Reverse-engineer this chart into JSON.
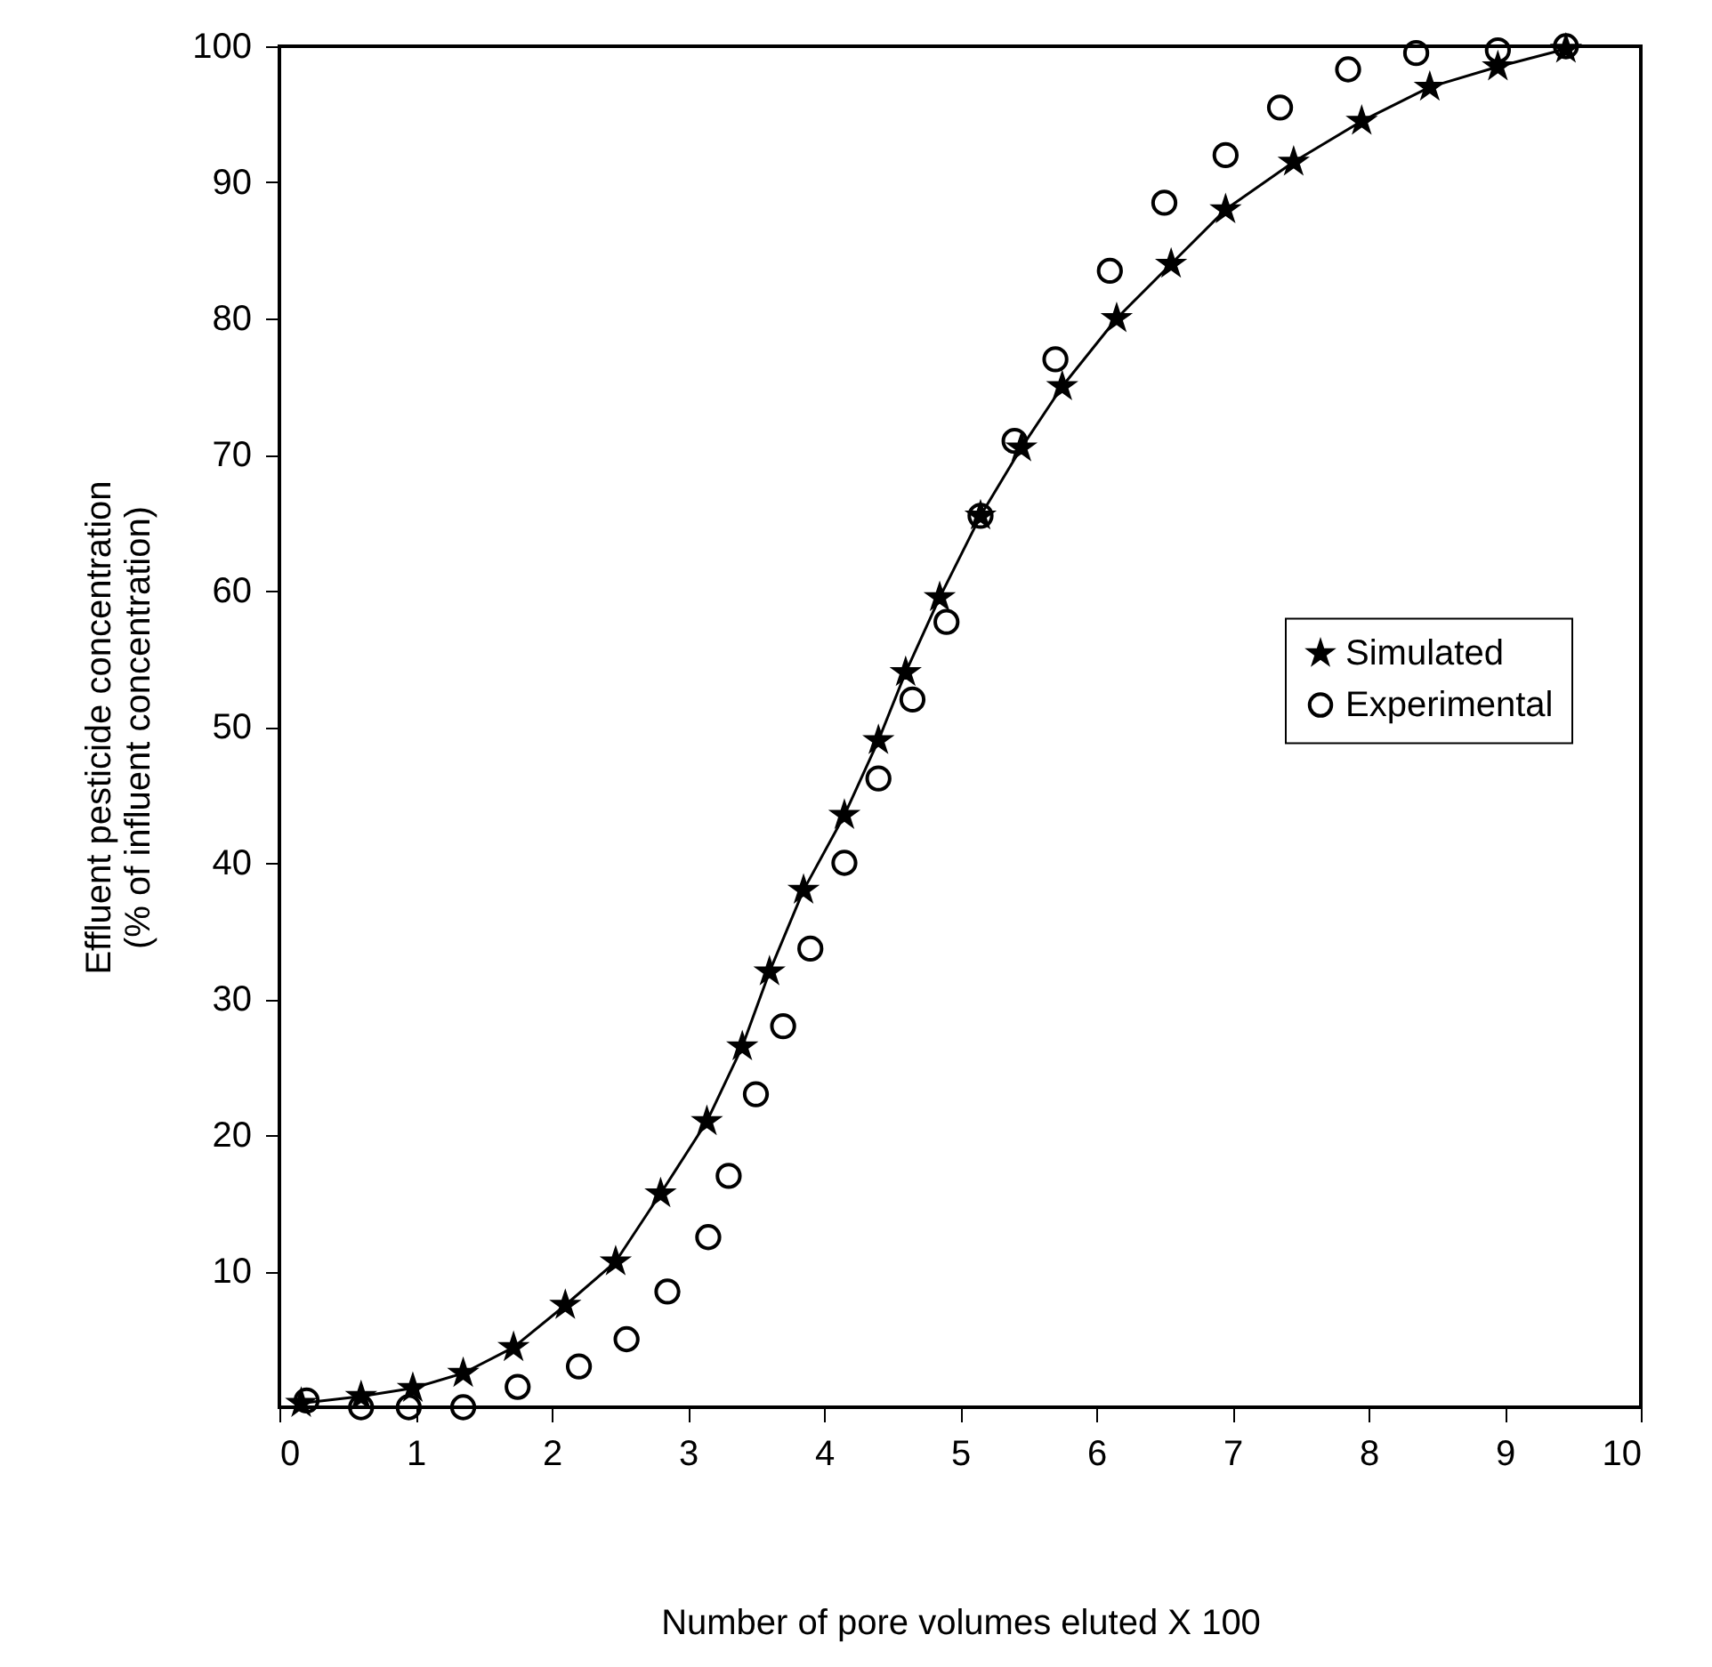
{
  "chart_data": {
    "type": "scatter",
    "xlabel": "Number of pore volumes eluted  X 100",
    "ylabel": "Effluent pesticide concentration\n(% of influent concentration)",
    "xlim": [
      0,
      10
    ],
    "xticks": [
      0,
      1,
      2,
      3,
      4,
      5,
      6,
      7,
      8,
      9,
      10
    ],
    "ylim": [
      0,
      100
    ],
    "yticks": [
      10,
      20,
      30,
      40,
      50,
      60,
      70,
      80,
      90,
      100
    ],
    "grid": false,
    "legend": "right",
    "series": [
      {
        "type": "line",
        "color": "#000000",
        "marker": "none",
        "line_style": "solid",
        "x": [
          0.16,
          0.6,
          0.98,
          1.35,
          1.72,
          2.1,
          2.47,
          2.8,
          3.14,
          3.4,
          3.6,
          3.85,
          4.15,
          4.4,
          4.6,
          4.85,
          5.15,
          5.45,
          5.75,
          6.15,
          6.55,
          6.95,
          7.45,
          7.95,
          8.45,
          8.95,
          9.45
        ],
        "values": [
          0.3,
          0.8,
          1.4,
          2.5,
          4.4,
          7.5,
          10.7,
          15.7,
          21,
          26.5,
          32,
          38,
          43.5,
          49,
          54,
          59.5,
          65.5,
          70.5,
          75,
          80,
          84,
          88,
          91.5,
          94.5,
          97,
          98.5,
          99.8
        ]
      },
      {
        "name": "Simulated",
        "color": "#000000",
        "marker": "star",
        "x": [
          0.16,
          0.6,
          0.98,
          1.35,
          1.72,
          2.1,
          2.47,
          2.8,
          3.14,
          3.4,
          3.6,
          3.85,
          4.15,
          4.4,
          4.6,
          4.85,
          5.15,
          5.45,
          5.75,
          6.15,
          6.55,
          6.95,
          7.45,
          7.95,
          8.45,
          8.95,
          9.45
        ],
        "values": [
          0.3,
          0.8,
          1.4,
          2.5,
          4.4,
          7.5,
          10.7,
          15.7,
          21,
          26.5,
          32,
          38,
          43.5,
          49,
          54,
          59.5,
          65.5,
          70.5,
          75,
          80,
          84,
          88,
          91.5,
          94.5,
          97,
          98.5,
          99.8
        ]
      },
      {
        "name": "Experimental",
        "color": "#000000",
        "marker": "circle",
        "x": [
          0.2,
          0.6,
          0.95,
          1.35,
          1.75,
          2.2,
          2.55,
          2.85,
          3.15,
          3.3,
          3.5,
          3.7,
          3.9,
          4.15,
          4.4,
          4.65,
          4.9,
          5.15,
          5.4,
          5.7,
          6.1,
          6.5,
          6.95,
          7.35,
          7.85,
          8.35,
          8.95,
          9.45
        ],
        "values": [
          0.5,
          0,
          0,
          0,
          1.5,
          3,
          5,
          8.5,
          12.5,
          17,
          23,
          28,
          33.7,
          40,
          46.2,
          52,
          57.7,
          65.5,
          71,
          77,
          83.5,
          88.5,
          92,
          95.5,
          98.3,
          99.5,
          99.7,
          100
        ]
      }
    ]
  }
}
